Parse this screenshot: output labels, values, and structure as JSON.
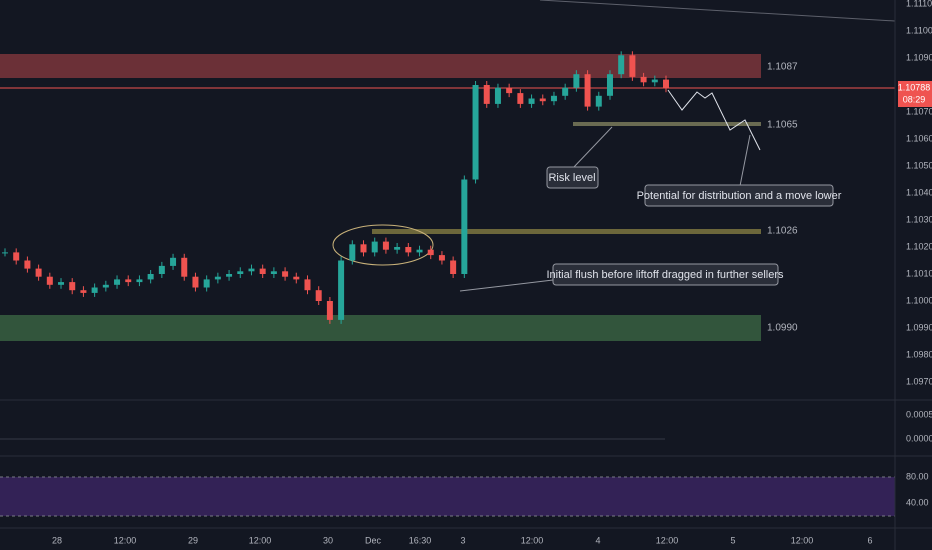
{
  "price_axis": {
    "ticks": [
      "1.11100",
      "1.11000",
      "1.10900",
      "1.10700",
      "1.10600",
      "1.10500",
      "1.10400",
      "1.10300",
      "1.10200",
      "1.10100",
      "1.10000",
      "1.09900",
      "1.09800",
      "1.09700"
    ]
  },
  "current_price": "1.10788",
  "countdown": "08:29",
  "time_axis": [
    "28",
    "12:00",
    "29",
    "12:00",
    "30",
    "Dec",
    "16:30",
    "3",
    "12:00",
    "4",
    "12:00",
    "5",
    "12:00",
    "6"
  ],
  "levels": [
    {
      "label": "1.1087"
    },
    {
      "label": "1.1065"
    },
    {
      "label": "1.1026"
    },
    {
      "label": "1.0990"
    }
  ],
  "annotations": [
    {
      "text": "Risk level"
    },
    {
      "text": "Potential for distribution and a move lower"
    },
    {
      "text": "Initial flush before liftoff dragged in further sellers"
    }
  ],
  "macd_axis": [
    "0.00050",
    "0.00000"
  ],
  "stoch_axis": [
    "80.00",
    "40.00"
  ],
  "closes": [
    1.1018,
    1.1015,
    1.1012,
    1.1009,
    1.1006,
    1.1007,
    1.1004,
    1.1003,
    1.1005,
    1.1006,
    1.1008,
    1.1007,
    1.1008,
    1.101,
    1.1013,
    1.1016,
    1.1009,
    1.1005,
    1.1008,
    1.1009,
    1.101,
    1.1011,
    1.1012,
    1.101,
    1.1011,
    1.1009,
    1.1008,
    1.1004,
    1.1,
    1.0993,
    1.1015,
    1.1021,
    1.1018,
    1.1022,
    1.1019,
    1.102,
    1.1018,
    1.1019,
    1.1017,
    1.1015,
    1.101,
    1.1045,
    1.108,
    1.1073,
    1.1079,
    1.1077,
    1.1073,
    1.1075,
    1.1074,
    1.1076,
    1.1079,
    1.1084,
    1.1072,
    1.1076,
    1.1084,
    1.1091,
    1.1083,
    1.1081,
    1.1082,
    1.10788
  ]
}
